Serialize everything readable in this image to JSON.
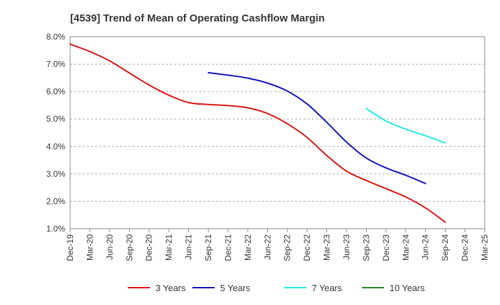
{
  "chart_data": {
    "type": "line",
    "title": "[4539]  Trend of Mean of Operating Cashflow Margin",
    "xlabel": "",
    "ylabel": "",
    "x_categories": [
      "Dec-19",
      "Mar-20",
      "Jun-20",
      "Sep-20",
      "Dec-20",
      "Mar-21",
      "Jun-21",
      "Sep-21",
      "Dec-21",
      "Mar-22",
      "Jun-22",
      "Sep-22",
      "Dec-22",
      "Mar-23",
      "Jun-23",
      "Sep-23",
      "Dec-23",
      "Mar-24",
      "Jun-24",
      "Sep-24",
      "Dec-24",
      "Mar-25"
    ],
    "y_ticks": [
      "1.0%",
      "2.0%",
      "3.0%",
      "4.0%",
      "5.0%",
      "6.0%",
      "7.0%",
      "8.0%"
    ],
    "ylim": [
      1.0,
      8.0
    ],
    "grid": "horizontal-dashed",
    "legend_position": "bottom",
    "series": [
      {
        "name": "3 Years",
        "color": "#dd1111",
        "start_index": 0,
        "values": [
          7.73,
          7.46,
          7.12,
          6.68,
          6.24,
          5.87,
          5.6,
          5.53,
          5.49,
          5.41,
          5.2,
          4.83,
          4.33,
          3.67,
          3.1,
          2.76,
          2.46,
          2.16,
          1.76,
          1.24
        ]
      },
      {
        "name": "5 Years",
        "color": "#1111bb",
        "start_index": 7,
        "values": [
          6.69,
          6.6,
          6.49,
          6.31,
          6.02,
          5.55,
          4.88,
          4.16,
          3.58,
          3.22,
          2.95,
          2.65
        ]
      },
      {
        "name": "7 Years",
        "color": "#22e8e8",
        "start_index": 15,
        "values": [
          5.38,
          4.93,
          4.63,
          4.39,
          4.13
        ]
      },
      {
        "name": "10 Years",
        "color": "#228822",
        "start_index": 0,
        "values": []
      }
    ]
  }
}
